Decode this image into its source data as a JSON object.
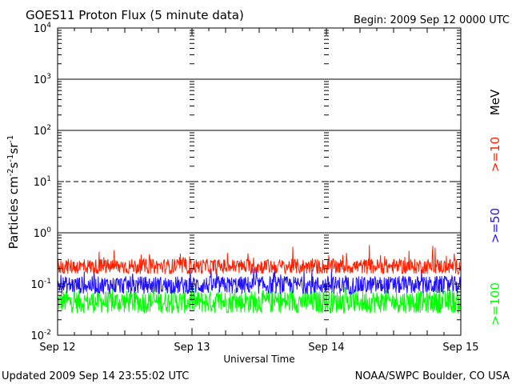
{
  "header": {
    "title": "GOES11 Proton Flux (5 minute data)",
    "begin": "Begin: 2009 Sep 12 0000 UTC"
  },
  "footer": {
    "updated": "Updated 2009 Sep 14 23:55:02 UTC",
    "credit": "NOAA/SWPC Boulder, CO USA"
  },
  "chart_data": {
    "type": "line",
    "title": "GOES11 Proton Flux (5 minute data)",
    "xlabel": "Universal Time",
    "ylabel_parts": [
      "Particles cm",
      "-2",
      "s",
      "-1",
      "sr",
      "-1"
    ],
    "y_scale": "log",
    "ylim": [
      0.01,
      10000
    ],
    "y_ticks": [
      {
        "mantissa": "10",
        "exp": "-2",
        "value": 0.01
      },
      {
        "mantissa": "10",
        "exp": "-1",
        "value": 0.1
      },
      {
        "mantissa": "10",
        "exp": "0",
        "value": 1
      },
      {
        "mantissa": "10",
        "exp": "1",
        "value": 10
      },
      {
        "mantissa": "10",
        "exp": "2",
        "value": 100
      },
      {
        "mantissa": "10",
        "exp": "3",
        "value": 1000
      },
      {
        "mantissa": "10",
        "exp": "4",
        "value": 10000
      }
    ],
    "threshold_lines": [
      {
        "value": 10,
        "style": "dashed"
      },
      {
        "value": 1,
        "style": "solid"
      },
      {
        "value": 100,
        "style": "solid"
      },
      {
        "value": 1000,
        "style": "solid"
      }
    ],
    "x_ticks": [
      "Sep 12",
      "Sep 13",
      "Sep 14",
      "Sep 15"
    ],
    "grid": false,
    "legend_unit": "MeV",
    "series": [
      {
        "name": ">=10",
        "color": "#ff2000",
        "baseline": 0.22,
        "spread": 0.3,
        "min": 0.13,
        "max": 0.7
      },
      {
        "name": ">=50",
        "color": "#2010ff",
        "baseline": 0.095,
        "spread": 0.35,
        "min": 0.055,
        "max": 0.2
      },
      {
        "name": ">=100",
        "color": "#00ff00",
        "baseline": 0.045,
        "spread": 0.45,
        "min": 0.026,
        "max": 0.085
      }
    ]
  }
}
